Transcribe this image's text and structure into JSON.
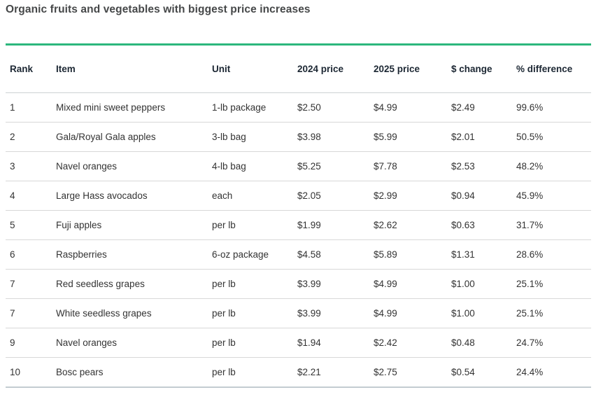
{
  "title": "Organic fruits and vegetables with biggest price increases",
  "colors": {
    "accent_green": "#2cb77d",
    "header_text": "#1c2733",
    "body_text": "#333333",
    "title_text": "#464849",
    "row_divider": "#d8d8d8",
    "bottom_border": "#c3ccd1"
  },
  "chart_data": {
    "type": "table",
    "title": "Organic fruits and vegetables with biggest price increases",
    "columns": [
      "Rank",
      "Item",
      "Unit",
      "2024 price",
      "2025 price",
      "$ change",
      "% difference"
    ],
    "rows": [
      [
        "1",
        "Mixed mini sweet peppers",
        "1-lb package",
        "$2.50",
        "$4.99",
        "$2.49",
        "99.6%"
      ],
      [
        "2",
        "Gala/Royal Gala apples",
        "3-lb bag",
        "$3.98",
        "$5.99",
        "$2.01",
        "50.5%"
      ],
      [
        "3",
        "Navel oranges",
        "4-lb bag",
        "$5.25",
        "$7.78",
        "$2.53",
        "48.2%"
      ],
      [
        "4",
        "Large Hass avocados",
        "each",
        "$2.05",
        "$2.99",
        "$0.94",
        "45.9%"
      ],
      [
        "5",
        "Fuji apples",
        "per lb",
        "$1.99",
        "$2.62",
        "$0.63",
        "31.7%"
      ],
      [
        "6",
        "Raspberries",
        "6-oz package",
        "$4.58",
        "$5.89",
        "$1.31",
        "28.6%"
      ],
      [
        "7",
        "Red seedless grapes",
        "per lb",
        "$3.99",
        "$4.99",
        "$1.00",
        "25.1%"
      ],
      [
        "7",
        "White seedless grapes",
        "per lb",
        "$3.99",
        "$4.99",
        "$1.00",
        "25.1%"
      ],
      [
        "9",
        "Navel oranges",
        "per lb",
        "$1.94",
        "$2.42",
        "$0.48",
        "24.7%"
      ],
      [
        "10",
        "Bosc pears",
        "per lb",
        "$2.21",
        "$2.75",
        "$0.54",
        "24.4%"
      ]
    ]
  }
}
